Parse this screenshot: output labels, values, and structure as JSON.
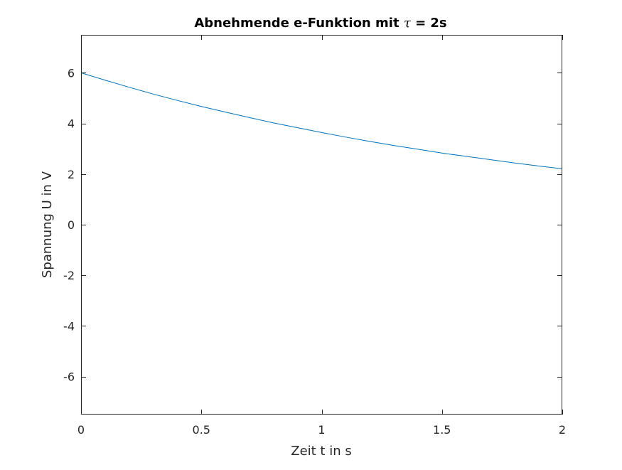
{
  "chart_data": {
    "type": "line",
    "title": {
      "prefix": "Abnehmende e-Funktion mit ",
      "symbol": "τ",
      "suffix": " = 2s"
    },
    "xlabel": "Zeit t in s",
    "ylabel": "Spannung U in V",
    "xlim": [
      0,
      2
    ],
    "ylim": [
      -7.5,
      7.5
    ],
    "xticks": [
      {
        "value": 0,
        "label": "0"
      },
      {
        "value": 0.5,
        "label": "0.5"
      },
      {
        "value": 1,
        "label": "1"
      },
      {
        "value": 1.5,
        "label": "1.5"
      },
      {
        "value": 2,
        "label": "2"
      }
    ],
    "yticks": [
      {
        "value": -6,
        "label": "-6"
      },
      {
        "value": -4,
        "label": "-4"
      },
      {
        "value": -2,
        "label": "-2"
      },
      {
        "value": 0,
        "label": "0"
      },
      {
        "value": 2,
        "label": "2"
      },
      {
        "value": 4,
        "label": "4"
      },
      {
        "value": 6,
        "label": "6"
      }
    ],
    "grid": false,
    "box": true,
    "colors": {
      "line": "#0072BD",
      "axes": "#262626"
    },
    "series": [
      {
        "x": [
          0,
          0.1,
          0.2,
          0.3,
          0.4,
          0.5,
          0.6,
          0.7,
          0.8,
          0.9,
          1.0,
          1.1,
          1.2,
          1.3,
          1.4,
          1.5,
          1.6,
          1.7,
          1.8,
          1.9,
          2.0
        ],
        "values": [
          6.0,
          5.71,
          5.43,
          5.16,
          4.91,
          4.67,
          4.45,
          4.23,
          4.02,
          3.83,
          3.64,
          3.46,
          3.29,
          3.13,
          2.98,
          2.83,
          2.7,
          2.57,
          2.44,
          2.32,
          2.21
        ]
      }
    ]
  }
}
